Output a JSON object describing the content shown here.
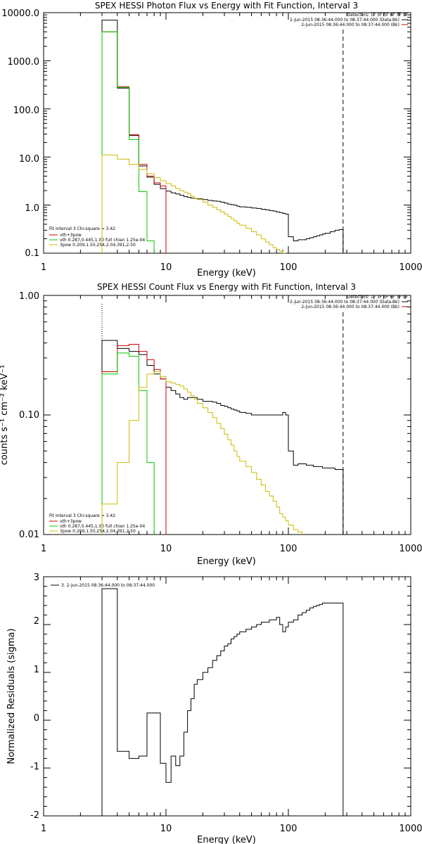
{
  "chart_data": [
    {
      "type": "line",
      "title": "SPEX HESSI Photon Flux vs Energy with Fit Function, Interval 3",
      "xlabel": "Energy (keV)",
      "ylabel": "",
      "xscale": "log",
      "yscale": "log",
      "xlim": [
        1,
        1000
      ],
      "ylim": [
        0.1,
        10000
      ],
      "xticks": [
        "1",
        "10",
        "100",
        "1000"
      ],
      "yticks": [
        "0.1",
        "1.0",
        "10.0",
        "100.0",
        "1000.0",
        "10000.0"
      ],
      "dashed_vline_x": 280,
      "dotted_vline_x": 3,
      "legend_topright": [
        {
          "text": "Detectors: 1F 3F 5F 6F 7F 9F",
          "color": "#000000"
        },
        {
          "text": "2-Jun-2015 08:36:44.000 to 08:37:44.000 (Data-Bk)",
          "color": "#000000"
        },
        {
          "text": "2-Jun-2015 08:36:44.000 to 08:37:44.000 (Bk)",
          "color": "#cc0000"
        }
      ],
      "legend_bottomleft": [
        {
          "text": "Fit Interval 3   Chi-square = 3.42",
          "color": "#000000"
        },
        {
          "text": "vth+3pow",
          "color": "#cc0000"
        },
        {
          "text": "vth 0.287,0.445,1.00  full chian 1.25e-04",
          "color": "#00cc00"
        },
        {
          "text": "3pow 0.209,1.50,254,2.04,391,2.50",
          "color": "#ccbb00"
        }
      ],
      "series": [
        {
          "color": "#000000",
          "x": [
            3,
            4,
            5,
            6,
            7,
            8,
            9,
            10,
            11,
            12,
            13,
            14,
            15,
            16,
            17,
            18,
            20,
            22,
            24,
            26,
            28,
            30,
            32,
            34,
            36,
            38,
            40,
            45,
            50,
            55,
            60,
            65,
            70,
            75,
            80,
            85,
            90,
            95,
            100,
            110,
            120,
            130,
            140,
            150,
            160,
            170,
            180,
            190,
            200,
            220,
            240,
            260,
            280
          ],
          "y": [
            7000,
            270,
            28,
            6.5,
            3.8,
            2.7,
            2.2,
            1.95,
            1.8,
            1.7,
            1.6,
            1.5,
            1.45,
            1.4,
            1.38,
            1.35,
            1.3,
            1.25,
            1.22,
            1.2,
            1.15,
            1.1,
            1.05,
            1.02,
            1.0,
            0.95,
            0.92,
            0.9,
            0.87,
            0.85,
            0.82,
            0.8,
            0.77,
            0.75,
            0.72,
            0.7,
            0.67,
            0.65,
            0.22,
            0.18,
            0.19,
            0.19,
            0.2,
            0.21,
            0.22,
            0.23,
            0.24,
            0.25,
            0.26,
            0.28,
            0.3,
            0.31,
            0.31
          ]
        },
        {
          "color": "#cc0000",
          "x": [
            3,
            4,
            5,
            6,
            7,
            8,
            9,
            10
          ],
          "y": [
            4000,
            290,
            29,
            7,
            4,
            2.9,
            2.5,
            2.2
          ]
        },
        {
          "color": "#00cc00",
          "x": [
            3,
            4,
            5,
            6,
            7,
            8
          ],
          "y": [
            4000,
            280,
            23,
            1.9,
            0.18,
            0.1
          ]
        },
        {
          "color": "#ccbb00",
          "x": [
            3,
            4,
            5,
            6,
            7,
            8,
            9,
            10,
            11,
            12,
            13,
            14,
            15,
            16,
            17,
            18,
            20,
            22,
            24,
            26,
            28,
            30,
            32,
            34,
            36,
            38,
            40,
            45,
            50,
            55,
            60,
            65,
            70,
            75,
            80,
            85,
            90,
            95
          ],
          "y": [
            11,
            9,
            7,
            5.5,
            4.5,
            3.7,
            3.2,
            2.8,
            2.5,
            2.2,
            2.0,
            1.85,
            1.7,
            1.55,
            1.4,
            1.3,
            1.15,
            1.0,
            0.9,
            0.8,
            0.72,
            0.65,
            0.58,
            0.52,
            0.47,
            0.42,
            0.38,
            0.33,
            0.28,
            0.24,
            0.2,
            0.17,
            0.15,
            0.13,
            0.12,
            0.11,
            0.1,
            0.09
          ]
        }
      ]
    },
    {
      "type": "line",
      "title": "SPEX HESSI Count Flux vs Energy with Fit Function, Interval 3",
      "xlabel": "Energy (keV)",
      "ylabel": "counts s⁻¹ cm⁻² keV⁻¹",
      "xscale": "log",
      "yscale": "log",
      "xlim": [
        1,
        1000
      ],
      "ylim": [
        0.01,
        1.0
      ],
      "xticks": [
        "1",
        "10",
        "100",
        "1000"
      ],
      "yticks": [
        "0.01",
        "0.10",
        "1.00"
      ],
      "dashed_vline_x": 280,
      "dotted_vline_x": 3,
      "legend_topright": [
        {
          "text": "Detectors: 1F 3F 5F 6F 7F 9F",
          "color": "#000000"
        },
        {
          "text": "2-Jun-2015 08:36:44.000 to 08:37:44.000 (Data-Bk)",
          "color": "#000000"
        },
        {
          "text": "2-Jun-2015 08:36:44.000 to 08:37:44.000 (Bk)",
          "color": "#cc0000"
        }
      ],
      "legend_bottomleft": [
        {
          "text": "Fit Interval 3   Chi-square = 3.42",
          "color": "#000000"
        },
        {
          "text": "vth+3pow",
          "color": "#cc0000"
        },
        {
          "text": "vth 0.287,0.445,1.00  full chian 1.25e-04",
          "color": "#00cc00"
        },
        {
          "text": "3pow 0.209,1.50,254,2.04,391,2.50",
          "color": "#ccbb00"
        }
      ],
      "series": [
        {
          "color": "#000000",
          "x": [
            3,
            4,
            5,
            6,
            7,
            8,
            9,
            10,
            11,
            12,
            13,
            14,
            15,
            16,
            17,
            18,
            20,
            22,
            24,
            26,
            28,
            30,
            32,
            34,
            36,
            38,
            40,
            45,
            50,
            55,
            60,
            65,
            70,
            75,
            80,
            85,
            90,
            95,
            100,
            110,
            120,
            130,
            140,
            150,
            160,
            170,
            180,
            190,
            200,
            220,
            240,
            260,
            280
          ],
          "y": [
            0.42,
            0.36,
            0.34,
            0.32,
            0.26,
            0.22,
            0.2,
            0.17,
            0.16,
            0.15,
            0.14,
            0.135,
            0.14,
            0.14,
            0.14,
            0.135,
            0.13,
            0.13,
            0.128,
            0.125,
            0.12,
            0.118,
            0.115,
            0.112,
            0.11,
            0.108,
            0.105,
            0.103,
            0.1,
            0.1,
            0.1,
            0.1,
            0.1,
            0.1,
            0.1,
            0.1,
            0.105,
            0.1,
            0.05,
            0.038,
            0.039,
            0.039,
            0.038,
            0.038,
            0.037,
            0.037,
            0.037,
            0.036,
            0.036,
            0.036,
            0.035,
            0.035,
            0.035
          ]
        },
        {
          "color": "#cc0000",
          "x": [
            3,
            4,
            5,
            6,
            7,
            8,
            9,
            10
          ],
          "y": [
            0.23,
            0.38,
            0.39,
            0.34,
            0.29,
            0.24,
            0.2,
            0.17
          ]
        },
        {
          "color": "#00cc00",
          "x": [
            3,
            4,
            5,
            6,
            7,
            8
          ],
          "y": [
            0.22,
            0.33,
            0.31,
            0.16,
            0.04,
            0.01
          ]
        },
        {
          "color": "#ccbb00",
          "x": [
            3,
            4,
            5,
            6,
            7,
            8,
            9,
            10,
            11,
            12,
            13,
            14,
            15,
            16,
            17,
            18,
            20,
            22,
            24,
            26,
            28,
            30,
            32,
            34,
            36,
            38,
            40,
            45,
            50,
            55,
            60,
            65,
            70,
            75,
            80,
            85,
            90,
            95,
            100,
            110,
            120,
            130
          ],
          "y": [
            0.018,
            0.04,
            0.09,
            0.17,
            0.22,
            0.23,
            0.21,
            0.19,
            0.185,
            0.18,
            0.175,
            0.165,
            0.155,
            0.145,
            0.135,
            0.125,
            0.115,
            0.105,
            0.095,
            0.085,
            0.077,
            0.069,
            0.062,
            0.056,
            0.05,
            0.045,
            0.041,
            0.037,
            0.033,
            0.029,
            0.026,
            0.023,
            0.021,
            0.019,
            0.017,
            0.015,
            0.014,
            0.013,
            0.012,
            0.011,
            0.0105,
            0.01
          ]
        }
      ]
    },
    {
      "type": "line",
      "title": "",
      "xlabel": "Energy (keV)",
      "ylabel": "Normalized Residuals (sigma)",
      "xscale": "log",
      "yscale": "linear",
      "xlim": [
        1,
        1000
      ],
      "ylim": [
        -2,
        3
      ],
      "xticks": [
        "1",
        "10",
        "100",
        "1000"
      ],
      "yticks": [
        "-2",
        "-1",
        "0",
        "1",
        "2",
        "3"
      ],
      "legend_topleft": [
        {
          "text": "3.  2-Jun-2015 08:36:44.000 to 08:37:44.000",
          "color": "#000000"
        }
      ],
      "series": [
        {
          "color": "#000000",
          "x": [
            3,
            4,
            5,
            6,
            7,
            8,
            9,
            10,
            11,
            12,
            13,
            14,
            15,
            16,
            17,
            18,
            20,
            22,
            24,
            26,
            28,
            30,
            32,
            34,
            36,
            38,
            40,
            45,
            50,
            55,
            60,
            65,
            70,
            75,
            80,
            85,
            90,
            95,
            100,
            110,
            120,
            130,
            140,
            150,
            160,
            170,
            180,
            190,
            200,
            220,
            240,
            260,
            280
          ],
          "y": [
            2.75,
            -0.65,
            -0.8,
            -0.75,
            0.15,
            0.15,
            -0.9,
            -1.3,
            -0.75,
            -0.95,
            -0.75,
            -0.25,
            0.2,
            0.45,
            0.75,
            0.85,
            1.0,
            1.1,
            1.25,
            1.35,
            1.45,
            1.55,
            1.6,
            1.7,
            1.75,
            1.8,
            1.85,
            1.9,
            1.95,
            2.0,
            2.05,
            2.05,
            2.1,
            2.1,
            2.15,
            2.0,
            1.85,
            1.95,
            2.05,
            2.1,
            2.2,
            2.25,
            2.3,
            2.35,
            2.38,
            2.4,
            2.42,
            2.45,
            2.45,
            2.45,
            2.45,
            2.45,
            2.45
          ]
        }
      ]
    }
  ]
}
